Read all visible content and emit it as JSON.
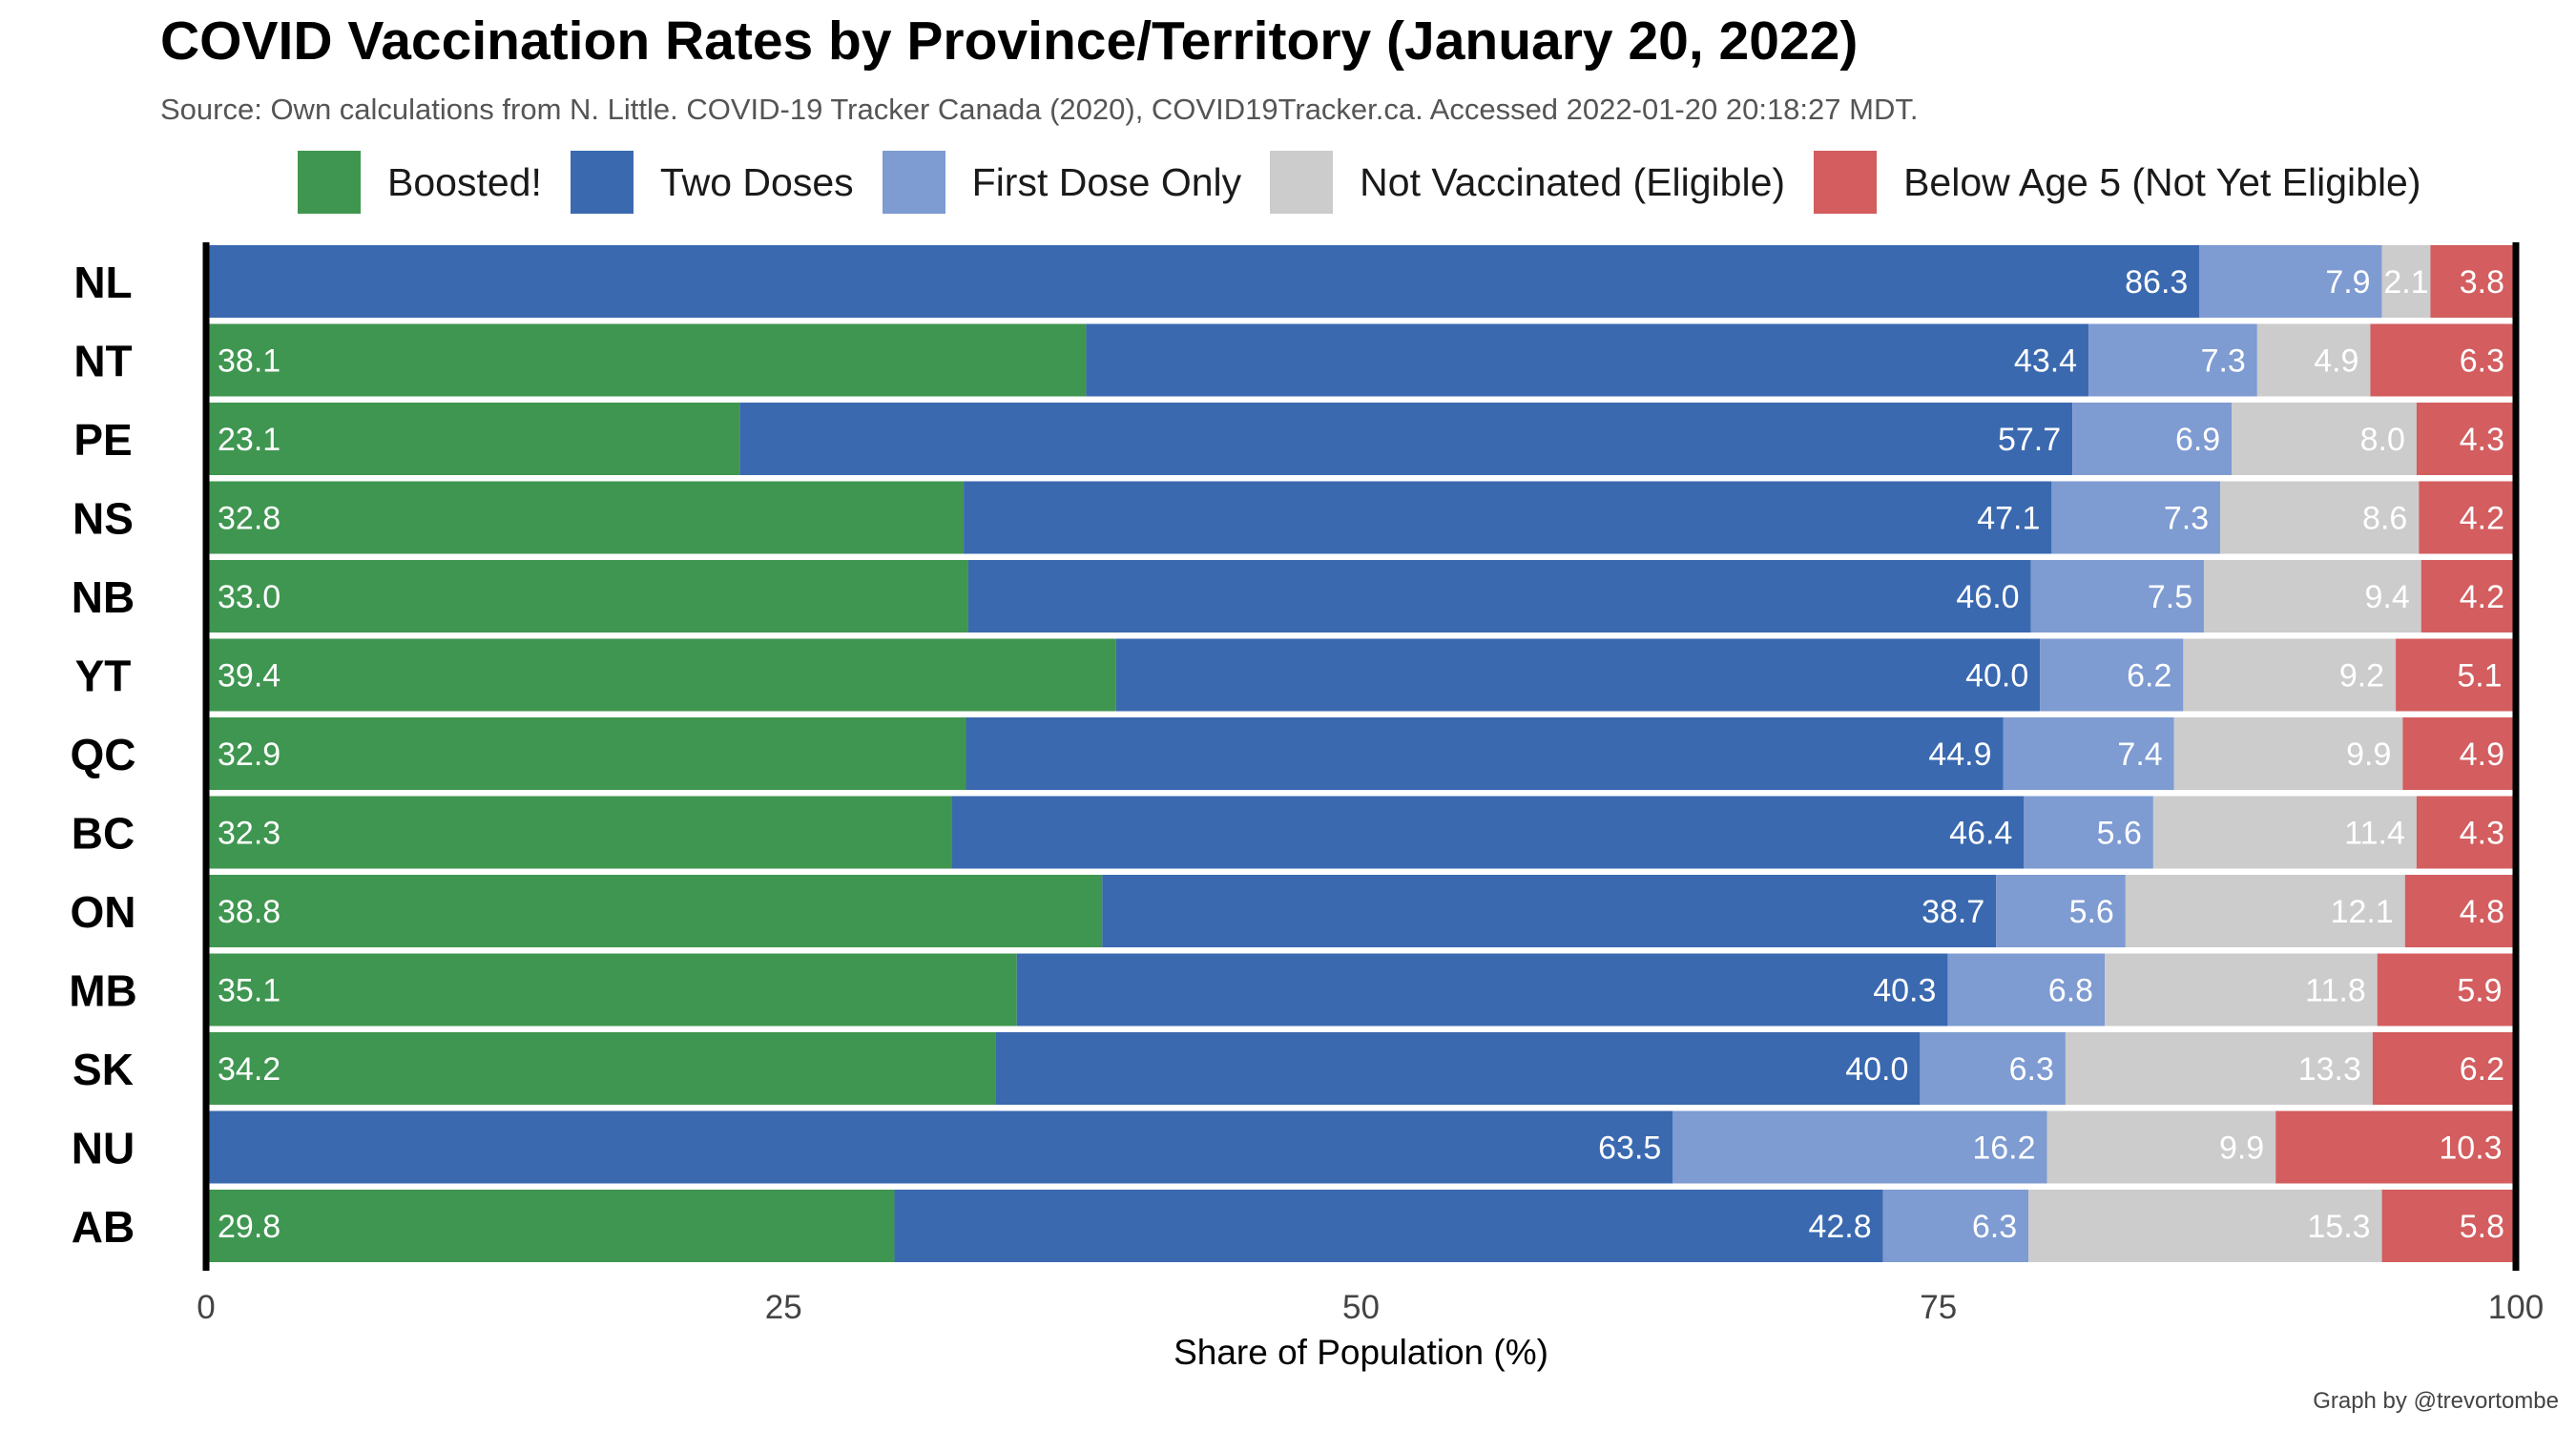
{
  "title": "COVID Vaccination Rates by Province/Territory (January 20, 2022)",
  "subtitle": "Source: Own calculations from N. Little. COVID-19 Tracker Canada (2020), COVID19Tracker.ca. Accessed 2022-01-20 20:18:27 MDT.",
  "credit": "Graph by @trevortombe",
  "colors": {
    "boosted": "#3f9650",
    "two_doses": "#3a69b0",
    "first_dose": "#7e9bd2",
    "not_vaccinated": "#cccccc",
    "below5": "#d35d5f"
  },
  "chart_data": {
    "type": "bar",
    "orientation": "horizontal",
    "stacked": true,
    "xlabel": "Share of Population (%)",
    "ylabel": "",
    "xlim": [
      0,
      100
    ],
    "xticks": [
      "0",
      "25",
      "50",
      "75",
      "100"
    ],
    "grid": false,
    "legend_position": "top",
    "categories": [
      "NL",
      "NT",
      "PE",
      "NS",
      "NB",
      "YT",
      "QC",
      "BC",
      "ON",
      "MB",
      "SK",
      "NU",
      "AB"
    ],
    "series": [
      {
        "name": "Boosted!",
        "color": "#3f9650",
        "values": [
          null,
          38.1,
          23.1,
          32.8,
          33.0,
          39.4,
          32.9,
          32.3,
          38.8,
          35.1,
          34.2,
          null,
          29.8
        ],
        "labels": [
          "n/a",
          "38.1",
          "23.1",
          "32.8",
          "33.0",
          "39.4",
          "32.9",
          "32.3",
          "38.8",
          "35.1",
          "34.2",
          "n/a",
          "29.8"
        ]
      },
      {
        "name": "Two Doses",
        "color": "#3a69b0",
        "values": [
          86.3,
          43.4,
          57.7,
          47.1,
          46.0,
          40.0,
          44.9,
          46.4,
          38.7,
          40.3,
          40.0,
          63.5,
          42.8
        ],
        "labels": [
          "86.3",
          "43.4",
          "57.7",
          "47.1",
          "46.0",
          "40.0",
          "44.9",
          "46.4",
          "38.7",
          "40.3",
          "40.0",
          "63.5",
          "42.8"
        ]
      },
      {
        "name": "First Dose Only",
        "color": "#7e9bd2",
        "values": [
          7.9,
          7.3,
          6.9,
          7.3,
          7.5,
          6.2,
          7.4,
          5.6,
          5.6,
          6.8,
          6.3,
          16.2,
          6.3
        ],
        "labels": [
          "7.9",
          "7.3",
          "6.9",
          "7.3",
          "7.5",
          "6.2",
          "7.4",
          "5.6",
          "5.6",
          "6.8",
          "6.3",
          "16.2",
          "6.3"
        ]
      },
      {
        "name": "Not Vaccinated (Eligible)",
        "color": "#cccccc",
        "values": [
          2.1,
          4.9,
          8.0,
          8.6,
          9.4,
          9.2,
          9.9,
          11.4,
          12.1,
          11.8,
          13.3,
          9.9,
          15.3
        ],
        "labels": [
          "2.1",
          "4.9",
          "8.0",
          "8.6",
          "9.4",
          "9.2",
          "9.9",
          "11.4",
          "12.1",
          "11.8",
          "13.3",
          "9.9",
          "15.3"
        ]
      },
      {
        "name": "Below Age 5 (Not Yet Eligible)",
        "color": "#d35d5f",
        "values": [
          3.8,
          6.3,
          4.3,
          4.2,
          4.2,
          5.1,
          4.9,
          4.3,
          4.8,
          5.9,
          6.2,
          10.3,
          5.8
        ],
        "labels": [
          "3.8",
          "6.3",
          "4.3",
          "4.2",
          "4.2",
          "5.1",
          "4.9",
          "4.3",
          "4.8",
          "5.9",
          "6.2",
          "10.3",
          "5.8"
        ]
      }
    ]
  }
}
